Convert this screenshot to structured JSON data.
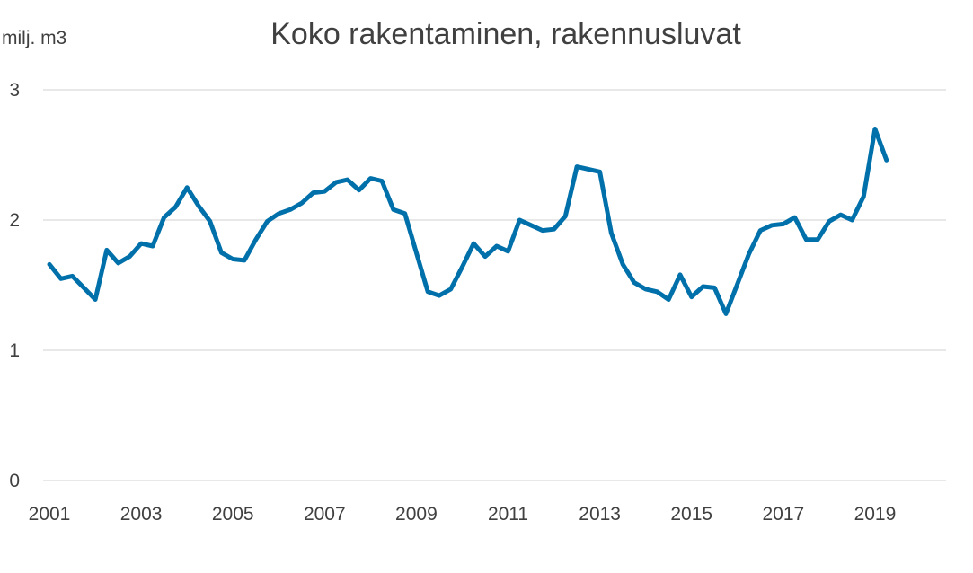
{
  "chart_data": {
    "type": "line",
    "title": "Koko rakentaminen, rakennusluvat",
    "ylabel": "milj. m3",
    "ylim": [
      0,
      3
    ],
    "yticks": [
      "0",
      "1",
      "2",
      "3"
    ],
    "xticks": [
      "2001",
      "2003",
      "2005",
      "2007",
      "2009",
      "2011",
      "2013",
      "2015",
      "2017",
      "2019"
    ],
    "xlim": [
      2001.0,
      2020.0
    ],
    "grid": "horizontal",
    "colors": {
      "series": "#0070aa",
      "grid": "#d9d9d9",
      "text": "#404040"
    },
    "series": [
      {
        "x": [
          2001.0,
          2001.25,
          2001.5,
          2001.75,
          2002.0,
          2002.25,
          2002.5,
          2002.75,
          2003.0,
          2003.25,
          2003.5,
          2003.75,
          2004.0,
          2004.25,
          2004.5,
          2004.75,
          2005.0,
          2005.25,
          2005.5,
          2005.75,
          2006.0,
          2006.25,
          2006.5,
          2006.75,
          2007.0,
          2007.25,
          2007.5,
          2007.75,
          2008.0,
          2008.25,
          2008.5,
          2008.75,
          2009.0,
          2009.25,
          2009.5,
          2009.75,
          2010.0,
          2010.25,
          2010.5,
          2010.75,
          2011.0,
          2011.25,
          2011.5,
          2011.75,
          2012.0,
          2012.25,
          2012.5,
          2012.75,
          2013.0,
          2013.25,
          2013.5,
          2013.75,
          2014.0,
          2014.25,
          2014.5,
          2014.75,
          2015.0,
          2015.25,
          2015.5,
          2015.75,
          2016.0,
          2016.25,
          2016.5,
          2016.75,
          2017.0,
          2017.25,
          2017.5,
          2017.75,
          2018.0,
          2018.25,
          2018.5,
          2018.75,
          2019.0,
          2019.25
        ],
        "values": [
          1.66,
          1.55,
          1.57,
          1.48,
          1.39,
          1.77,
          1.67,
          1.72,
          1.82,
          1.8,
          2.02,
          2.1,
          2.25,
          2.11,
          1.99,
          1.75,
          1.7,
          1.69,
          1.85,
          1.99,
          2.05,
          2.08,
          2.13,
          2.21,
          2.22,
          2.29,
          2.31,
          2.23,
          2.32,
          2.3,
          2.08,
          2.05,
          1.75,
          1.45,
          1.42,
          1.47,
          1.64,
          1.82,
          1.72,
          1.8,
          1.76,
          2.0,
          1.96,
          1.92,
          1.93,
          2.03,
          2.41,
          2.39,
          2.37,
          1.9,
          1.66,
          1.52,
          1.47,
          1.45,
          1.39,
          1.58,
          1.41,
          1.49,
          1.48,
          1.28,
          1.51,
          1.74,
          1.92,
          1.96,
          1.97,
          2.02,
          1.85,
          1.85,
          1.99,
          2.04,
          2.0,
          2.18,
          2.7,
          2.46
        ]
      }
    ]
  }
}
